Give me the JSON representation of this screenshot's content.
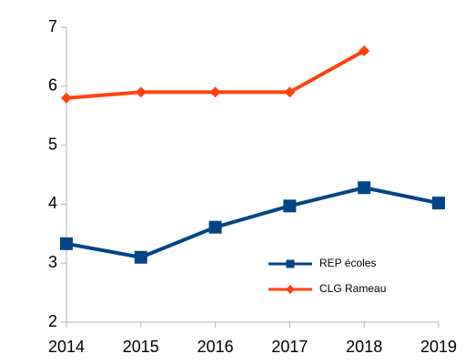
{
  "chart_data": {
    "type": "line",
    "x": [
      2014,
      2015,
      2016,
      2017,
      2018,
      2019
    ],
    "series": [
      {
        "name": "REP écoles",
        "color": "#004586",
        "marker": "square",
        "values": [
          3.33,
          3.1,
          3.61,
          3.97,
          4.28,
          4.02
        ]
      },
      {
        "name": "CLG Rameau",
        "color": "#ff420e",
        "marker": "diamond",
        "values": [
          5.8,
          5.9,
          5.9,
          5.9,
          6.6,
          null
        ]
      }
    ],
    "xlim": [
      2014,
      2019
    ],
    "xticks": [
      2014,
      2015,
      2016,
      2017,
      2018,
      2019
    ],
    "ylim": [
      2,
      7
    ],
    "yticks": [
      2,
      3,
      4,
      5,
      6,
      7
    ],
    "grid": false,
    "legend": "lower right"
  }
}
